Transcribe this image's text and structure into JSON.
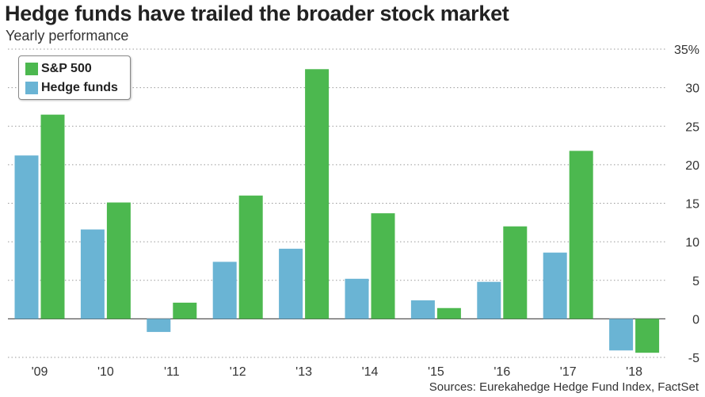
{
  "header": {
    "title": "Hedge funds have trailed the broader stock market",
    "subtitle": "Yearly performance"
  },
  "footer": {
    "source": "Sources: Eurekahedge Hedge Fund Index, FactSet"
  },
  "colors": {
    "sp500": "#4cb84f",
    "hedge": "#6ab4d4",
    "grid": "#9a9a9a",
    "axis": "#555555"
  },
  "chart_data": {
    "type": "bar",
    "categories": [
      "'09",
      "'10",
      "'11",
      "'12",
      "'13",
      "'14",
      "'15",
      "'16",
      "'17",
      "'18"
    ],
    "series": [
      {
        "name": "Hedge funds",
        "values": [
          21.2,
          11.6,
          -1.7,
          7.4,
          9.1,
          5.2,
          2.4,
          4.8,
          8.6,
          -4.1
        ]
      },
      {
        "name": "S&P 500",
        "values": [
          26.5,
          15.1,
          2.1,
          16.0,
          32.4,
          13.7,
          1.4,
          12.0,
          21.8,
          -4.4
        ]
      }
    ],
    "legend_order": [
      "S&P 500",
      "Hedge funds"
    ],
    "legend_position": "top-left",
    "ylim": [
      -5,
      35
    ],
    "yticks": [
      -5,
      0,
      5,
      10,
      15,
      20,
      25,
      30,
      35
    ],
    "ytick_labels": [
      "-5",
      "0",
      "5",
      "10",
      "15",
      "20",
      "25",
      "30",
      "35%"
    ],
    "y_axis_side": "right",
    "grid": "horizontal dotted",
    "xlabel": "",
    "ylabel": ""
  }
}
